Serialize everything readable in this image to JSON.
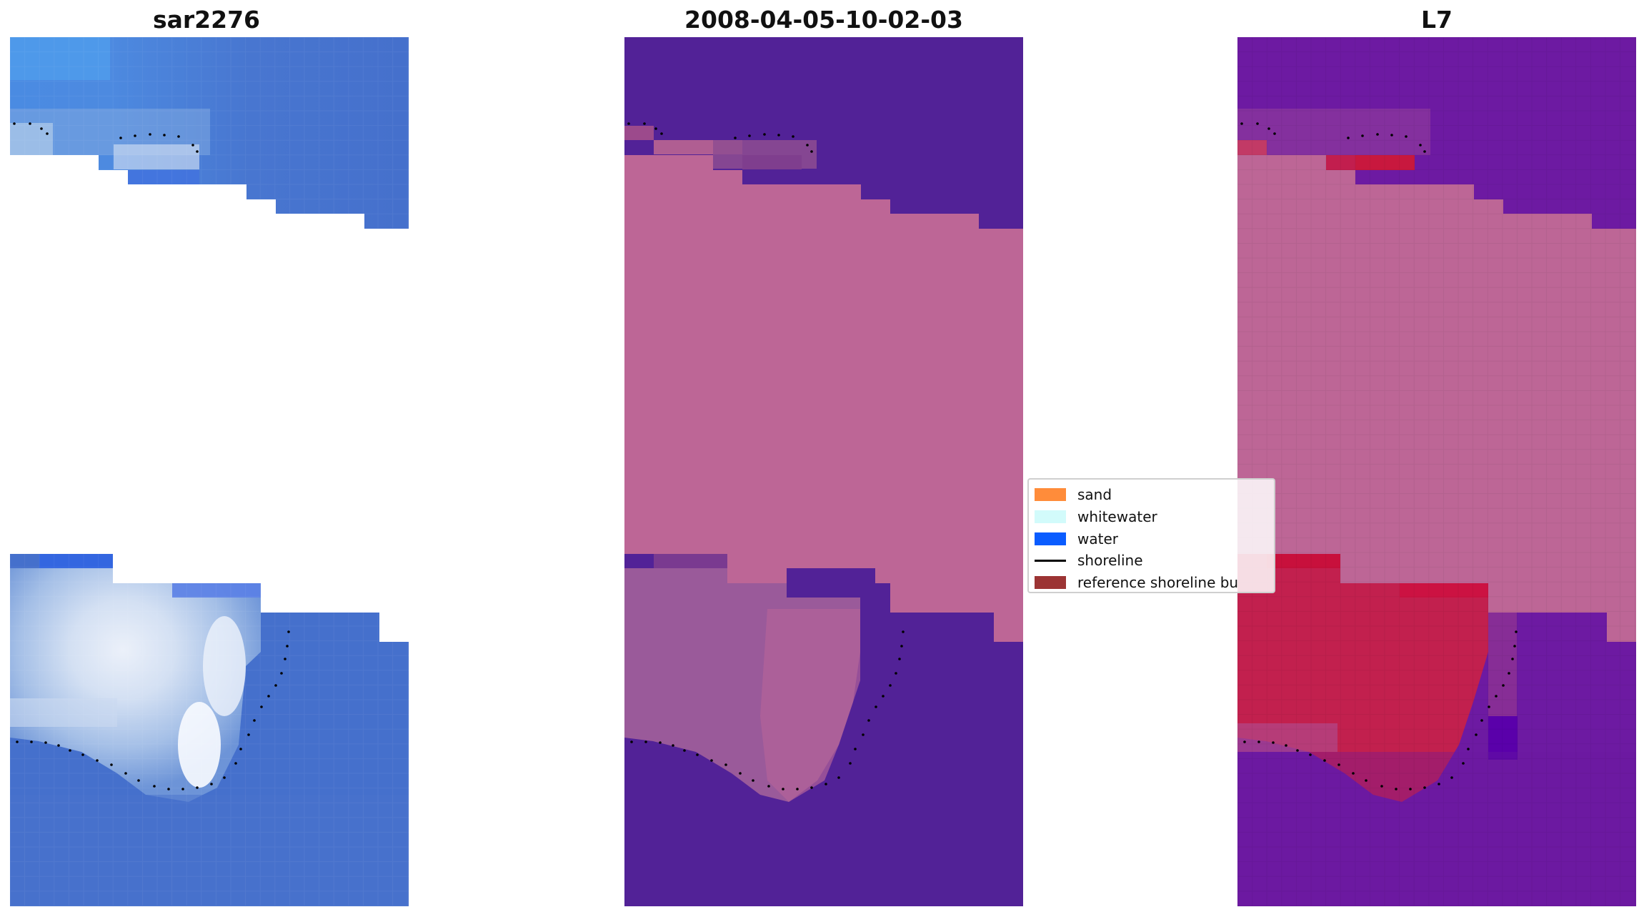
{
  "titles": {
    "panel1": "sar2276",
    "panel2": "2008-04-05-10-02-03",
    "panel3": "L7"
  },
  "legend": {
    "items": [
      {
        "label": "sand",
        "type": "patch",
        "color": "#ff8c3a"
      },
      {
        "label": "whitewater",
        "type": "patch",
        "color": "#d2fbfb"
      },
      {
        "label": "water",
        "type": "patch",
        "color": "#0a5cff"
      },
      {
        "label": "shoreline",
        "type": "line",
        "color": "#000000"
      },
      {
        "label": "reference shoreline bu",
        "type": "patch",
        "color": "#9c3434"
      }
    ]
  },
  "colors": {
    "rgb_water": "#4574cc",
    "rgb_water_light": "#5b8fe0",
    "rgb_surf": "#b8d2ee",
    "rgb_whitewater": "#eef5fb",
    "nodata": "#bd6696",
    "class_water": "#522297",
    "class_shallow": "#9a5a9a",
    "mndwi_water": "#6d1aa2",
    "mndwi_land": "#c2204e",
    "shoreline_dots": "#000000"
  }
}
